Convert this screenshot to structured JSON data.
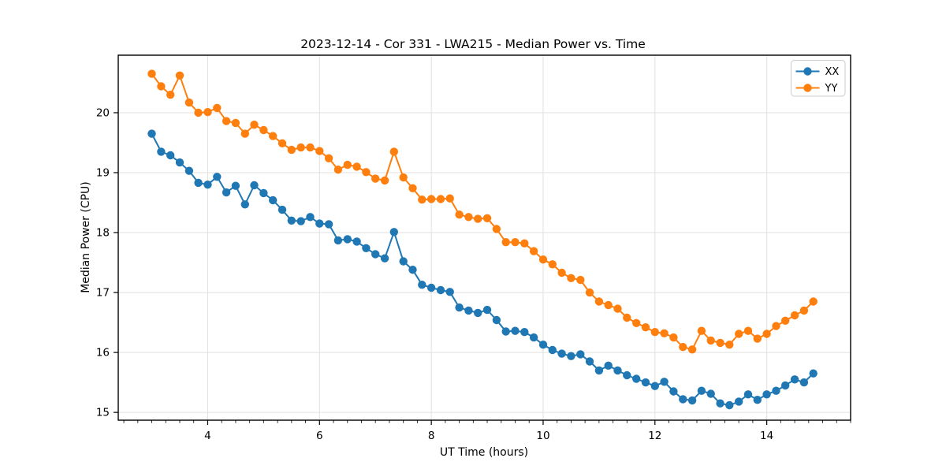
{
  "chart_data": {
    "type": "line",
    "title": "2023-12-14 - Cor 331 - LWA215 - Median Power vs. Time",
    "xlabel": "UT Time (hours)",
    "ylabel": "Median Power (CPU)",
    "xlim": [
      2.4,
      15.5
    ],
    "ylim": [
      14.87,
      20.96
    ],
    "xticks": [
      4,
      6,
      8,
      10,
      12,
      14
    ],
    "yticks": [
      15,
      16,
      17,
      18,
      19,
      20
    ],
    "x_minor_tick_step": 0.25,
    "grid": true,
    "legend_position": "upper right",
    "x": [
      3.0,
      3.167,
      3.333,
      3.5,
      3.667,
      3.833,
      4.0,
      4.167,
      4.333,
      4.5,
      4.667,
      4.833,
      5.0,
      5.167,
      5.333,
      5.5,
      5.667,
      5.833,
      6.0,
      6.167,
      6.333,
      6.5,
      6.667,
      6.833,
      7.0,
      7.167,
      7.333,
      7.5,
      7.667,
      7.833,
      8.0,
      8.167,
      8.333,
      8.5,
      8.667,
      8.833,
      9.0,
      9.167,
      9.333,
      9.5,
      9.667,
      9.833,
      10.0,
      10.167,
      10.333,
      10.5,
      10.667,
      10.833,
      11.0,
      11.167,
      11.333,
      11.5,
      11.667,
      11.833,
      12.0,
      12.167,
      12.333,
      12.5,
      12.667,
      12.833,
      13.0,
      13.167,
      13.333,
      13.5,
      13.667,
      13.833,
      14.0,
      14.167,
      14.333,
      14.5,
      14.667,
      14.833
    ],
    "series": [
      {
        "name": "XX",
        "color": "#1f77b4",
        "values": [
          19.65,
          19.35,
          19.29,
          19.17,
          19.03,
          18.83,
          18.8,
          18.93,
          18.67,
          18.78,
          18.47,
          18.79,
          18.66,
          18.54,
          18.38,
          18.2,
          18.19,
          18.26,
          18.15,
          18.14,
          17.87,
          17.89,
          17.85,
          17.74,
          17.64,
          17.57,
          18.01,
          17.52,
          17.38,
          17.13,
          17.08,
          17.04,
          17.01,
          16.75,
          16.7,
          16.66,
          16.71,
          16.54,
          16.35,
          16.36,
          16.34,
          16.25,
          16.13,
          16.04,
          15.98,
          15.94,
          15.97,
          15.85,
          15.7,
          15.78,
          15.7,
          15.62,
          15.56,
          15.5,
          15.44,
          15.51,
          15.35,
          15.22,
          15.2,
          15.36,
          15.31,
          15.15,
          15.12,
          15.18,
          15.3,
          15.21,
          15.3,
          15.36,
          15.45,
          15.55,
          15.5,
          15.65
        ]
      },
      {
        "name": "YY",
        "color": "#ff7f0e",
        "values": [
          20.65,
          20.44,
          20.3,
          20.62,
          20.17,
          20.0,
          20.01,
          20.08,
          19.86,
          19.83,
          19.65,
          19.8,
          19.71,
          19.61,
          19.49,
          19.38,
          19.42,
          19.42,
          19.36,
          19.24,
          19.05,
          19.13,
          19.1,
          19.01,
          18.9,
          18.87,
          19.35,
          18.92,
          18.74,
          18.55,
          18.56,
          18.56,
          18.57,
          18.3,
          18.26,
          18.23,
          18.24,
          18.06,
          17.84,
          17.84,
          17.82,
          17.69,
          17.55,
          17.47,
          17.33,
          17.24,
          17.21,
          17.0,
          16.85,
          16.79,
          16.73,
          16.58,
          16.49,
          16.42,
          16.34,
          16.32,
          16.25,
          16.09,
          16.05,
          16.36,
          16.2,
          16.16,
          16.13,
          16.31,
          16.36,
          16.23,
          16.31,
          16.44,
          16.53,
          16.62,
          16.7,
          16.85
        ]
      }
    ]
  }
}
